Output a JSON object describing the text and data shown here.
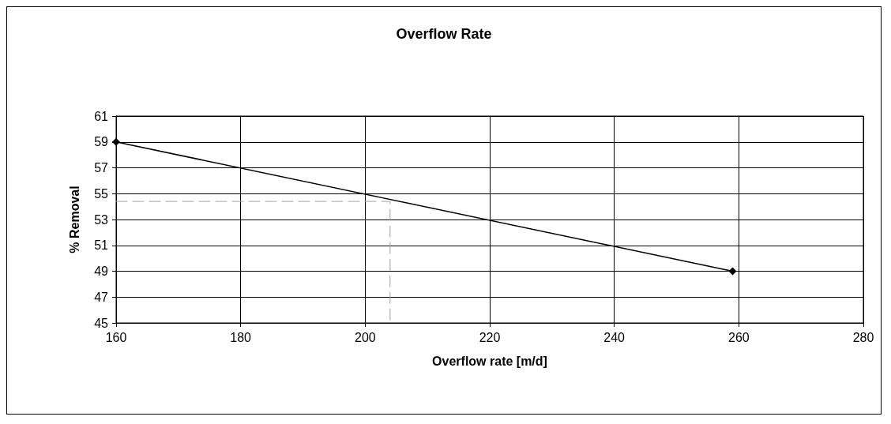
{
  "chart_data": {
    "type": "line",
    "title": "Overflow Rate",
    "xlabel": "Overflow rate [m/d]",
    "ylabel": "% Removal",
    "series": [
      {
        "color": "#000000",
        "x": [
          160,
          259
        ],
        "values": [
          59,
          49
        ],
        "marker": "diamond",
        "line_style": "solid"
      },
      {
        "color": "#a0a0a0",
        "x": [
          160,
          204,
          204
        ],
        "values": [
          54.4,
          54.4,
          45
        ],
        "marker": "none",
        "line_style": "dashed"
      }
    ],
    "xlim": [
      160,
      280
    ],
    "xticks": [
      160,
      180,
      200,
      220,
      240,
      260,
      280
    ],
    "ylim": [
      45,
      61
    ],
    "yticks": [
      45,
      47,
      49,
      51,
      53,
      55,
      57,
      59,
      61
    ],
    "grid": true
  }
}
